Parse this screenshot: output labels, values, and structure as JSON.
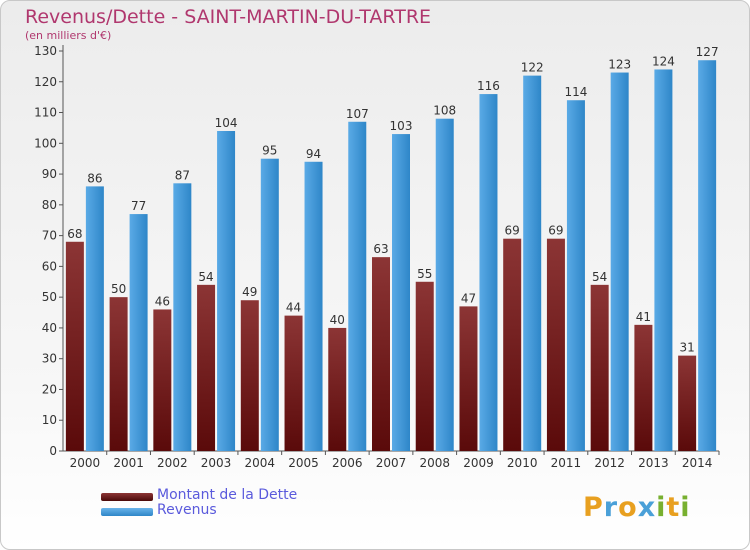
{
  "header": {
    "title": "Revenus/Dette - SAINT-MARTIN-DU-TARTRE",
    "subtitle": "(en milliers d'€)"
  },
  "legend": {
    "debt_label": "Montant de la Dette",
    "revenue_label": "Revenus"
  },
  "logo": {
    "text": "Proxiti",
    "letters": [
      "P",
      "r",
      "o",
      "x",
      "i",
      "t",
      "i"
    ],
    "letter_colors": [
      "#e8a020",
      "#4aa0d8",
      "#e8a020",
      "#4aa0d8",
      "#78b030",
      "#e8a020",
      "#78b030"
    ]
  },
  "colors": {
    "debt_top": "#8c3535",
    "debt_bottom": "#5a0a0a",
    "revenue_top": "#5aaae6",
    "revenue_bottom": "#2e86c8",
    "title": "#b0376e",
    "legend_text": "#5a5adc"
  },
  "chart_data": {
    "type": "bar",
    "title": "Revenus/Dette - SAINT-MARTIN-DU-TARTRE",
    "subtitle": "(en milliers d'€)",
    "categories": [
      "2000",
      "2001",
      "2002",
      "2003",
      "2004",
      "2005",
      "2006",
      "2007",
      "2008",
      "2009",
      "2010",
      "2011",
      "2012",
      "2013",
      "2014"
    ],
    "series": [
      {
        "name": "Montant de la Dette",
        "values": [
          68,
          50,
          46,
          54,
          49,
          44,
          40,
          63,
          55,
          47,
          69,
          69,
          54,
          41,
          31
        ]
      },
      {
        "name": "Revenus",
        "values": [
          86,
          77,
          87,
          104,
          95,
          94,
          107,
          103,
          108,
          116,
          122,
          114,
          123,
          124,
          127
        ]
      }
    ],
    "ylim": [
      0,
      130
    ],
    "ytick_step": 10,
    "grid": false,
    "data_labels": true,
    "legend_position": "bottom-left"
  }
}
